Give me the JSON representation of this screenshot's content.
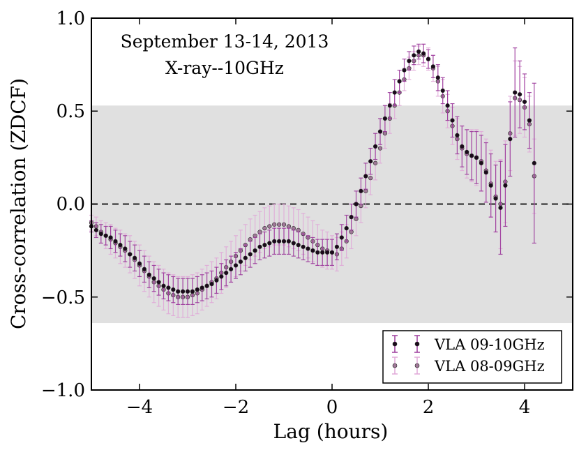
{
  "chart_data": {
    "type": "scatter",
    "title": "",
    "annotation": [
      "September 13-14, 2013",
      "X-ray--10GHz"
    ],
    "xlabel": "Lag (hours)",
    "ylabel": "Cross-correlation (ZDCF)",
    "xlim": [
      -5,
      5
    ],
    "ylim": [
      -1.0,
      1.0
    ],
    "xticks": [
      -4,
      -2,
      0,
      2,
      4
    ],
    "xtick_labels": [
      "−4",
      "−2",
      "0",
      "2",
      "4"
    ],
    "yticks": [
      -1.0,
      -0.5,
      0.0,
      0.5,
      1.0
    ],
    "ytick_labels": [
      "−1.0",
      "−0.5",
      "0.0",
      "0.5",
      "1.0"
    ],
    "shaded_band": [
      -0.64,
      0.53
    ],
    "reference_line": 0.0,
    "legend_position": "lower-right",
    "lag_start": -5.0,
    "lag_step": 0.1,
    "colors": {
      "series1": "#9c3a9c",
      "series1_point": "#1a0a1a",
      "series2": "#e0a8d8",
      "series2_point": "#a07898",
      "band": "#e0e0e0"
    },
    "series": [
      {
        "name": "VLA 09-10GHz",
        "y": [
          -0.12,
          -0.14,
          -0.16,
          -0.17,
          -0.18,
          -0.2,
          -0.22,
          -0.24,
          -0.27,
          -0.29,
          -0.32,
          -0.35,
          -0.38,
          -0.4,
          -0.42,
          -0.44,
          -0.45,
          -0.46,
          -0.47,
          -0.47,
          -0.47,
          -0.47,
          -0.46,
          -0.45,
          -0.44,
          -0.43,
          -0.41,
          -0.39,
          -0.37,
          -0.35,
          -0.33,
          -0.31,
          -0.29,
          -0.27,
          -0.25,
          -0.23,
          -0.22,
          -0.21,
          -0.2,
          -0.2,
          -0.2,
          -0.2,
          -0.21,
          -0.22,
          -0.23,
          -0.24,
          -0.25,
          -0.26,
          -0.26,
          -0.26,
          -0.26,
          -0.23,
          -0.18,
          -0.13,
          -0.07,
          0.0,
          0.07,
          0.15,
          0.23,
          0.31,
          0.39,
          0.46,
          0.53,
          0.6,
          0.66,
          0.72,
          0.77,
          0.8,
          0.82,
          0.81,
          0.78,
          0.74,
          0.68,
          0.61,
          0.53,
          0.45,
          0.37,
          0.31,
          0.28,
          0.26,
          0.25,
          0.22,
          0.17,
          0.1,
          0.03,
          -0.02,
          0.1,
          0.35,
          0.6,
          0.59,
          0.55,
          0.45,
          0.22
        ],
        "error": [
          0.03,
          0.04,
          0.05,
          0.05,
          0.06,
          0.06,
          0.06,
          0.07,
          0.07,
          0.07,
          0.07,
          0.07,
          0.07,
          0.07,
          0.07,
          0.07,
          0.07,
          0.07,
          0.07,
          0.07,
          0.07,
          0.07,
          0.07,
          0.07,
          0.07,
          0.07,
          0.07,
          0.07,
          0.07,
          0.07,
          0.07,
          0.07,
          0.07,
          0.07,
          0.07,
          0.07,
          0.07,
          0.07,
          0.07,
          0.07,
          0.07,
          0.07,
          0.07,
          0.07,
          0.07,
          0.07,
          0.07,
          0.07,
          0.07,
          0.07,
          0.07,
          0.07,
          0.07,
          0.07,
          0.07,
          0.07,
          0.07,
          0.07,
          0.07,
          0.07,
          0.07,
          0.07,
          0.07,
          0.07,
          0.06,
          0.06,
          0.05,
          0.05,
          0.04,
          0.05,
          0.05,
          0.06,
          0.07,
          0.07,
          0.08,
          0.09,
          0.1,
          0.11,
          0.12,
          0.13,
          0.14,
          0.15,
          0.16,
          0.17,
          0.18,
          0.25,
          0.22,
          0.2,
          0.24,
          0.18,
          0.15,
          0.15,
          0.43
        ]
      },
      {
        "name": "VLA 08-09GHz",
        "y": [
          -0.1,
          -0.12,
          -0.15,
          -0.17,
          -0.19,
          -0.21,
          -0.23,
          -0.25,
          -0.27,
          -0.3,
          -0.33,
          -0.36,
          -0.39,
          -0.42,
          -0.44,
          -0.46,
          -0.48,
          -0.49,
          -0.5,
          -0.5,
          -0.5,
          -0.49,
          -0.48,
          -0.46,
          -0.44,
          -0.42,
          -0.4,
          -0.37,
          -0.34,
          -0.31,
          -0.28,
          -0.25,
          -0.22,
          -0.19,
          -0.17,
          -0.15,
          -0.13,
          -0.12,
          -0.11,
          -0.11,
          -0.11,
          -0.12,
          -0.13,
          -0.14,
          -0.16,
          -0.18,
          -0.2,
          -0.22,
          -0.24,
          -0.25,
          -0.26,
          -0.27,
          -0.24,
          -0.2,
          -0.15,
          -0.08,
          -0.01,
          0.07,
          0.14,
          0.22,
          0.3,
          0.38,
          0.46,
          0.53,
          0.6,
          0.67,
          0.73,
          0.77,
          0.8,
          0.8,
          0.78,
          0.73,
          0.66,
          0.58,
          0.5,
          0.42,
          0.35,
          0.3,
          0.27,
          0.26,
          0.25,
          0.23,
          0.18,
          0.11,
          0.04,
          0.0,
          0.12,
          0.38,
          0.57,
          0.56,
          0.52,
          0.43,
          0.15
        ],
        "error": [
          0.04,
          0.05,
          0.06,
          0.07,
          0.08,
          0.08,
          0.09,
          0.09,
          0.1,
          0.1,
          0.11,
          0.11,
          0.11,
          0.11,
          0.11,
          0.11,
          0.11,
          0.11,
          0.11,
          0.11,
          0.11,
          0.11,
          0.11,
          0.11,
          0.11,
          0.11,
          0.11,
          0.11,
          0.11,
          0.11,
          0.11,
          0.11,
          0.11,
          0.11,
          0.11,
          0.11,
          0.11,
          0.11,
          0.11,
          0.11,
          0.11,
          0.11,
          0.11,
          0.11,
          0.11,
          0.11,
          0.11,
          0.11,
          0.1,
          0.1,
          0.09,
          0.09,
          0.09,
          0.09,
          0.09,
          0.09,
          0.09,
          0.09,
          0.09,
          0.09,
          0.08,
          0.08,
          0.08,
          0.07,
          0.07,
          0.06,
          0.06,
          0.05,
          0.05,
          0.06,
          0.06,
          0.07,
          0.08,
          0.09,
          0.09,
          0.1,
          0.11,
          0.12,
          0.13,
          0.14,
          0.15,
          0.16,
          0.17,
          0.18,
          0.19,
          0.24,
          0.22,
          0.2,
          0.2,
          0.18,
          0.16,
          0.15,
          0.2
        ]
      }
    ]
  }
}
